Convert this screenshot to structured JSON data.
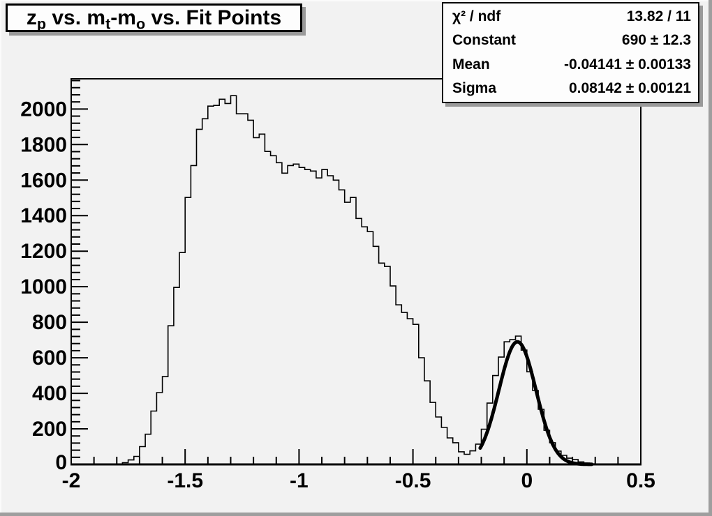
{
  "window": {
    "background": "#f2f2f2",
    "bevel_dark": "#9e9e9e",
    "bevel_light": "#fbfbfb",
    "box_background": "#fdfdfd",
    "box_border": "#000000",
    "box_shadow": "#9a9a9a",
    "line_color": "#000000"
  },
  "title_box": {
    "full_text": "z_p vs. m_t-m_o vs. Fit Points",
    "parts": [
      {
        "text": "z",
        "sub": "p"
      },
      {
        "text": " vs. m",
        "sub": "t"
      },
      {
        "text": "-m",
        "sub": "o"
      },
      {
        "text": " vs. Fit Points",
        "sub": ""
      }
    ]
  },
  "stats_box": {
    "rows": [
      {
        "label": "χ² / ndf",
        "value": "13.82 / 11"
      },
      {
        "label": "Constant",
        "value": "690 ± 12.3"
      },
      {
        "label": "Mean",
        "value": "-0.04141 ± 0.00133"
      },
      {
        "label": "Sigma",
        "value": "0.08142 ± 0.00121"
      }
    ]
  },
  "chart_data": {
    "type": "bar",
    "subtype": "step-histogram-with-gaussian-fit",
    "title": "z_p vs. m_t-m_o vs. Fit Points",
    "xlabel": "",
    "ylabel": "",
    "x_min": -2.0,
    "x_max": 0.5,
    "y_min": 0,
    "y_max": 2170,
    "grid": false,
    "bin_start": -2.0,
    "bin_width": 0.025,
    "bins": [
      0,
      0,
      0,
      0,
      0,
      0,
      0,
      0,
      2,
      10,
      25,
      45,
      100,
      170,
      300,
      404,
      494,
      780,
      996,
      1192,
      1502,
      1682,
      1886,
      1945,
      2016,
      2020,
      2055,
      2031,
      2075,
      1973,
      1973,
      1937,
      1839,
      1859,
      1761,
      1737,
      1698,
      1639,
      1682,
      1690,
      1671,
      1659,
      1651,
      1612,
      1659,
      1624,
      1600,
      1545,
      1475,
      1502,
      1384,
      1337,
      1310,
      1227,
      1133,
      1114,
      1004,
      898,
      855,
      820,
      788,
      600,
      470,
      349,
      267,
      208,
      149,
      122,
      71,
      57,
      76,
      114,
      198,
      345,
      500,
      604,
      690,
      702,
      722,
      643,
      521,
      416,
      310,
      192,
      122,
      75,
      51,
      35,
      27,
      14,
      8,
      3,
      1,
      0,
      0,
      0,
      0,
      0,
      0,
      0
    ],
    "x_ticks_major": [
      -2,
      -1.5,
      -1,
      -0.5,
      0,
      0.5
    ],
    "x_tick_labels": [
      "-2",
      "-1.5",
      "-1",
      "-0.5",
      "0",
      "0.5"
    ],
    "x_minor_step": 0.1,
    "y_ticks_major": [
      0,
      200,
      400,
      600,
      800,
      1000,
      1200,
      1400,
      1600,
      1800,
      2000
    ],
    "y_tick_labels": [
      "0",
      "200",
      "400",
      "600",
      "800",
      "1000",
      "1200",
      "1400",
      "1600",
      "1800",
      "2000"
    ],
    "y_minor_step": 40,
    "fit": {
      "model": "gaussian",
      "constant": 690,
      "mean": -0.04141,
      "sigma": 0.08142,
      "chi2": 13.82,
      "ndf": 11,
      "draw_from": -0.205,
      "draw_to": 0.285
    }
  }
}
